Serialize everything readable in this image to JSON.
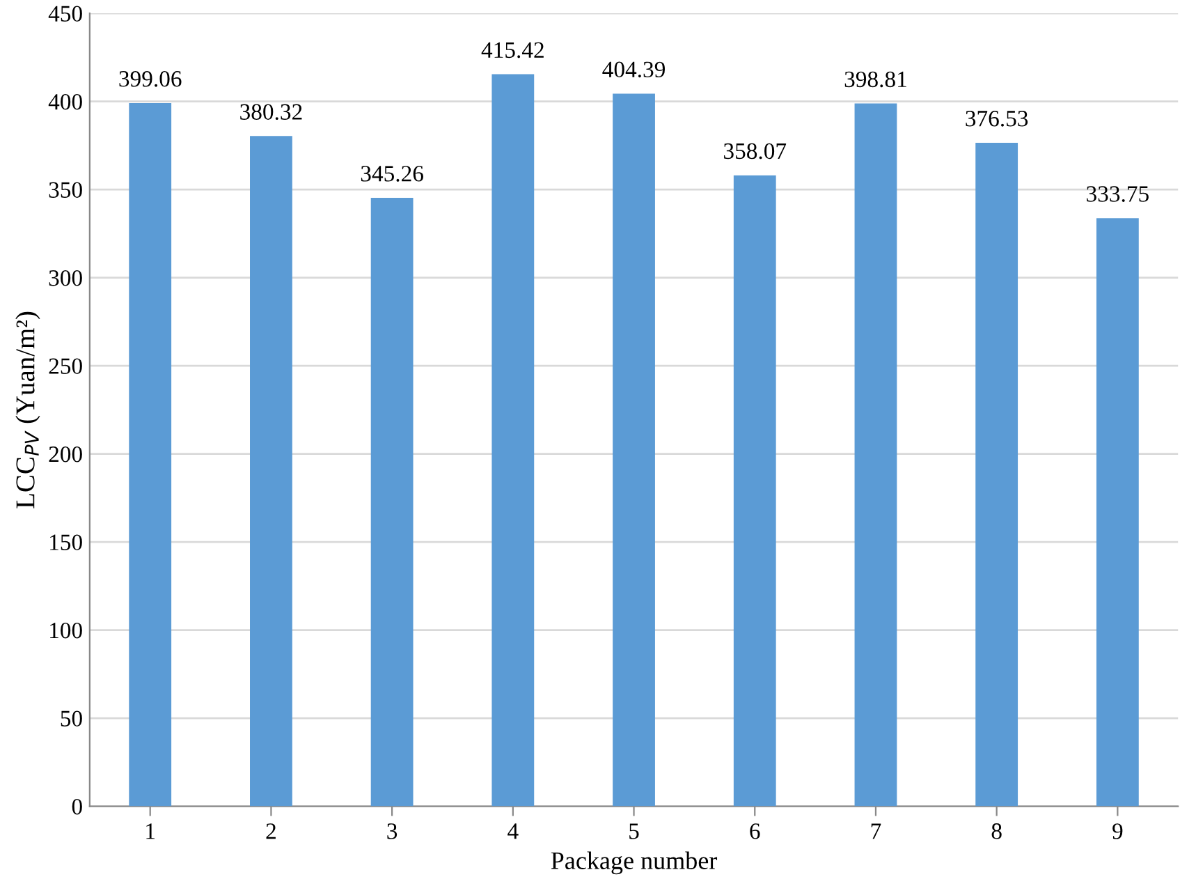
{
  "chart_data": {
    "type": "bar",
    "xlabel": "Package number",
    "ylabel": "LCC$_{PV}$ (Yuan/m²)",
    "categories": [
      "1",
      "2",
      "3",
      "4",
      "5",
      "6",
      "7",
      "8",
      "9"
    ],
    "values": [
      399.06,
      380.32,
      345.26,
      415.42,
      404.39,
      358.07,
      398.81,
      376.53,
      333.75
    ],
    "color": "#5b9bd5",
    "ylim": [
      0,
      450
    ],
    "yticks": [
      0,
      50,
      100,
      150,
      200,
      250,
      300,
      350,
      400,
      450
    ],
    "grid": "y",
    "data_labels": true
  }
}
